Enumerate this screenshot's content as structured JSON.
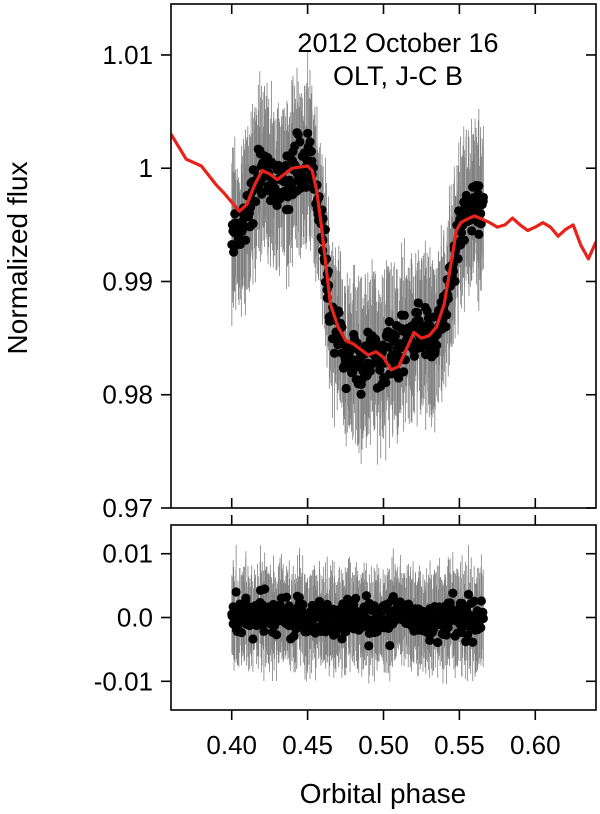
{
  "chart_data": [
    {
      "type": "scatter",
      "panel": "top",
      "annotations": [
        "2012 October 16",
        "OLT, J-C B"
      ],
      "ylabel": "Normalized flux",
      "xlabel": "",
      "xlim": [
        0.36,
        0.64
      ],
      "ylim": [
        0.97,
        1.0145
      ],
      "yticks": [
        0.97,
        0.98,
        0.99,
        1.0,
        1.01
      ],
      "ytick_labels": [
        "0.97",
        "0.98",
        "0.99",
        "1",
        "1.01"
      ],
      "xticks": [
        0.4,
        0.45,
        0.5,
        0.55,
        0.6
      ],
      "grid": false,
      "series": [
        {
          "kind": "points_with_errorbars",
          "color": "#000000",
          "errorbar_color": "#808080",
          "x_range": [
            0.4,
            0.566
          ],
          "binned": [
            {
              "x": 0.403,
              "y": 0.9945
            },
            {
              "x": 0.409,
              "y": 0.9955
            },
            {
              "x": 0.415,
              "y": 0.9985
            },
            {
              "x": 0.42,
              "y": 1.0005
            },
            {
              "x": 0.425,
              "y": 0.9995
            },
            {
              "x": 0.43,
              "y": 0.9975
            },
            {
              "x": 0.436,
              "y": 0.999
            },
            {
              "x": 0.442,
              "y": 1.0
            },
            {
              "x": 0.448,
              "y": 1.0005
            },
            {
              "x": 0.453,
              "y": 1.0005
            },
            {
              "x": 0.458,
              "y": 0.996
            },
            {
              "x": 0.462,
              "y": 0.991
            },
            {
              "x": 0.466,
              "y": 0.987
            },
            {
              "x": 0.47,
              "y": 0.985
            },
            {
              "x": 0.475,
              "y": 0.9835
            },
            {
              "x": 0.48,
              "y": 0.983
            },
            {
              "x": 0.486,
              "y": 0.9825
            },
            {
              "x": 0.492,
              "y": 0.9835
            },
            {
              "x": 0.498,
              "y": 0.983
            },
            {
              "x": 0.504,
              "y": 0.984
            },
            {
              "x": 0.51,
              "y": 0.9835
            },
            {
              "x": 0.516,
              "y": 0.9845
            },
            {
              "x": 0.522,
              "y": 0.986
            },
            {
              "x": 0.528,
              "y": 0.9855
            },
            {
              "x": 0.534,
              "y": 0.985
            },
            {
              "x": 0.54,
              "y": 0.987
            },
            {
              "x": 0.545,
              "y": 0.991
            },
            {
              "x": 0.55,
              "y": 0.994
            },
            {
              "x": 0.555,
              "y": 0.996
            },
            {
              "x": 0.56,
              "y": 0.997
            },
            {
              "x": 0.565,
              "y": 0.9965
            }
          ],
          "scatter": 0.0012,
          "errorbar": 0.006,
          "n_points": 460
        },
        {
          "kind": "line",
          "color": "#e8231b",
          "x": [
            0.36,
            0.37,
            0.38,
            0.39,
            0.395,
            0.4,
            0.405,
            0.41,
            0.415,
            0.42,
            0.425,
            0.43,
            0.435,
            0.44,
            0.445,
            0.45,
            0.453,
            0.456,
            0.459,
            0.462,
            0.465,
            0.47,
            0.475,
            0.48,
            0.485,
            0.49,
            0.495,
            0.5,
            0.505,
            0.51,
            0.515,
            0.52,
            0.525,
            0.53,
            0.535,
            0.54,
            0.545,
            0.548,
            0.551,
            0.555,
            0.56,
            0.565,
            0.57,
            0.575,
            0.58,
            0.585,
            0.59,
            0.595,
            0.6,
            0.605,
            0.61,
            0.615,
            0.62,
            0.625,
            0.63,
            0.635,
            0.64
          ],
          "y": [
            1.003,
            1.0008,
            1.0002,
            0.9985,
            0.9978,
            0.997,
            0.9962,
            0.9968,
            0.9985,
            0.9998,
            0.9995,
            0.999,
            0.9995,
            1.0,
            1.0001,
            1.0002,
            0.9998,
            0.998,
            0.995,
            0.9915,
            0.988,
            0.986,
            0.9848,
            0.9845,
            0.984,
            0.9835,
            0.9838,
            0.9833,
            0.9822,
            0.9825,
            0.984,
            0.9855,
            0.985,
            0.9852,
            0.986,
            0.988,
            0.992,
            0.9945,
            0.9952,
            0.9955,
            0.9958,
            0.9955,
            0.9952,
            0.9948,
            0.995,
            0.9956,
            0.995,
            0.9945,
            0.9948,
            0.9952,
            0.9948,
            0.994,
            0.9946,
            0.995,
            0.9932,
            0.992,
            0.9935
          ]
        }
      ]
    },
    {
      "type": "scatter",
      "panel": "bottom",
      "ylabel": "",
      "xlabel": "Orbital phase",
      "xlim": [
        0.36,
        0.64
      ],
      "ylim": [
        -0.0145,
        0.0145
      ],
      "yticks": [
        -0.01,
        0.0,
        0.01
      ],
      "ytick_labels": [
        "-0.01",
        "0.0",
        "0.01"
      ],
      "xticks": [
        0.4,
        0.45,
        0.5,
        0.55,
        0.6
      ],
      "xtick_labels": [
        "0.40",
        "0.45",
        "0.50",
        "0.55",
        "0.60"
      ],
      "grid": false,
      "series": [
        {
          "kind": "residuals_with_errorbars",
          "color": "#000000",
          "errorbar_color": "#808080",
          "x_range": [
            0.4,
            0.566
          ],
          "center": 0.0,
          "scatter": 0.0016,
          "errorbar": 0.0065,
          "n_points": 460
        }
      ]
    }
  ]
}
